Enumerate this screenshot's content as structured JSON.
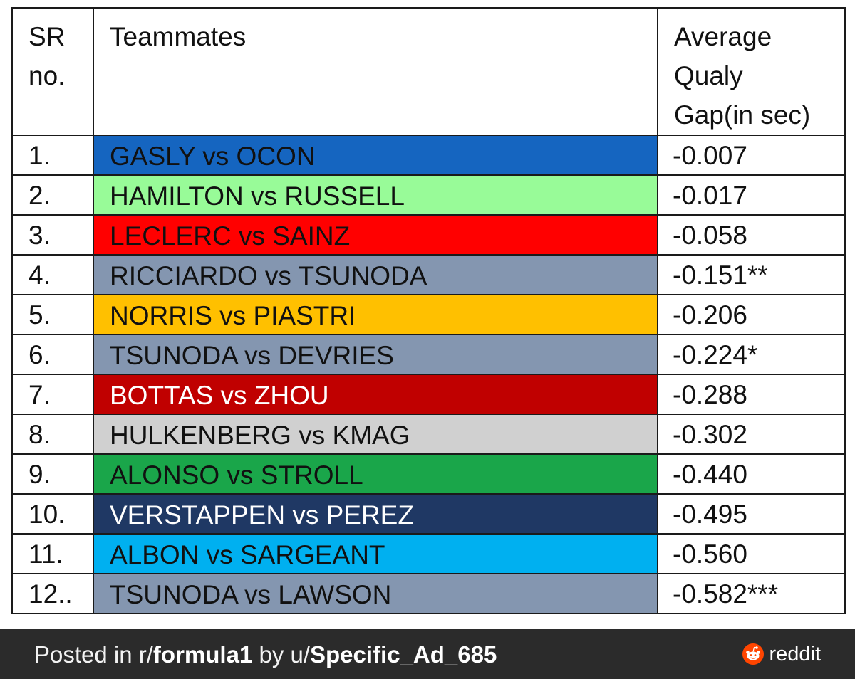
{
  "table": {
    "headers": {
      "sr_line1": "SR",
      "sr_line2": "no.",
      "teammates": "Teammates",
      "gap_line1": "Average",
      "gap_line2": "Qualy",
      "gap_line3": "Gap(in sec)"
    },
    "rows": [
      {
        "sr": "1.",
        "teammates": "GASLY vs OCON",
        "gap": "-0.007",
        "color": "#1565c0",
        "text_color": "#111111"
      },
      {
        "sr": "2.",
        "teammates": "HAMILTON vs RUSSELL",
        "gap": "-0.017",
        "color": "#98fb98",
        "text_color": "#111111"
      },
      {
        "sr": "3.",
        "teammates": "LECLERC vs SAINZ",
        "gap": "-0.058",
        "color": "#ff0000",
        "text_color": "#111111"
      },
      {
        "sr": "4.",
        "teammates": "RICCIARDO vs TSUNODA",
        "gap": "-0.151**",
        "color": "#8496b0",
        "text_color": "#111111"
      },
      {
        "sr": "5.",
        "teammates": "NORRIS vs PIASTRI",
        "gap": "-0.206",
        "color": "#ffc000",
        "text_color": "#111111"
      },
      {
        "sr": "6.",
        "teammates": "TSUNODA vs DEVRIES",
        "gap": "-0.224*",
        "color": "#8496b0",
        "text_color": "#111111"
      },
      {
        "sr": "7.",
        "teammates": "BOTTAS vs ZHOU",
        "gap": "-0.288",
        "color": "#c00000",
        "text_color": "#ffffff"
      },
      {
        "sr": "8.",
        "teammates": "HULKENBERG vs KMAG",
        "gap": "-0.302",
        "color": "#d0d0d0",
        "text_color": "#111111"
      },
      {
        "sr": "9.",
        "teammates": "ALONSO vs STROLL",
        "gap": "-0.440",
        "color": "#1aa64a",
        "text_color": "#111111"
      },
      {
        "sr": "10.",
        "teammates": "VERSTAPPEN vs PEREZ",
        "gap": "-0.495",
        "color": "#1f3864",
        "text_color": "#ffffff"
      },
      {
        "sr": "11.",
        "teammates": "ALBON vs SARGEANT",
        "gap": "-0.560",
        "color": "#00b0f0",
        "text_color": "#111111"
      },
      {
        "sr": "12..",
        "teammates": "TSUNODA vs LAWSON",
        "gap": "-0.582***",
        "color": "#8496b0",
        "text_color": "#111111"
      }
    ]
  },
  "footer": {
    "posted_in": "Posted in r/",
    "subreddit": "formula1",
    "by": " by u/",
    "username": "Specific_Ad_685",
    "brand": "reddit",
    "logo_icon": "reddit-logo-icon",
    "logo_color": "#ff4500"
  }
}
